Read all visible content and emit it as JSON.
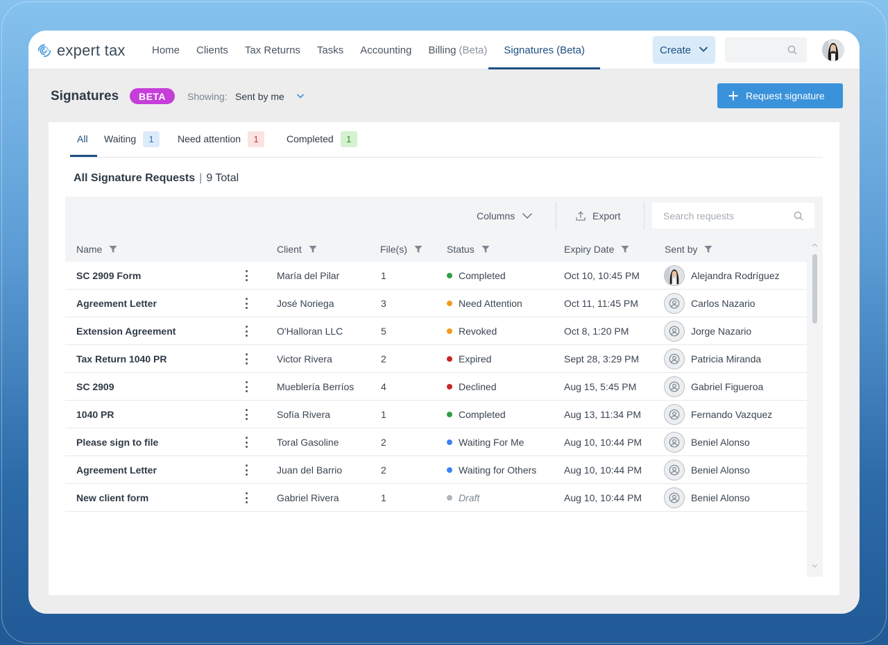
{
  "brand": {
    "name": "expert tax"
  },
  "nav": {
    "items": [
      {
        "label": "Home",
        "suffix": ""
      },
      {
        "label": "Clients",
        "suffix": ""
      },
      {
        "label": "Tax Returns",
        "suffix": ""
      },
      {
        "label": "Tasks",
        "suffix": ""
      },
      {
        "label": "Accounting",
        "suffix": ""
      },
      {
        "label": "Billing",
        "suffix": "(Beta)"
      },
      {
        "label": "Signatures",
        "suffix": "(Beta)"
      }
    ],
    "active_index": 6,
    "create_label": "Create"
  },
  "header": {
    "title": "Signatures",
    "beta_badge": "BETA",
    "showing_label": "Showing:",
    "showing_value": "Sent by me",
    "request_button": "Request signature"
  },
  "tabs": [
    {
      "label": "All",
      "count": null
    },
    {
      "label": "Waiting",
      "count": "1"
    },
    {
      "label": "Need attention",
      "count": "1"
    },
    {
      "label": "Completed",
      "count": "1"
    }
  ],
  "summary": {
    "title": "All Signature Requests",
    "separator": "|",
    "total": "9 Total"
  },
  "toolbar": {
    "columns_label": "Columns",
    "export_label": "Export",
    "search_placeholder": "Search requests"
  },
  "table": {
    "headers": {
      "name": "Name",
      "client": "Client",
      "files": "File(s)",
      "status": "Status",
      "expiry": "Expiry Date",
      "sender": "Sent by"
    },
    "rows": [
      {
        "name": "SC 2909 Form",
        "client": "María del Pilar",
        "files": "1",
        "status": "Completed",
        "status_color": "#2ea043",
        "expiry": "Oct 10, 10:45 PM",
        "sender": "Alejandra Rodríguez",
        "avatar": "photo"
      },
      {
        "name": "Agreement Letter",
        "client": "José Noriega",
        "files": "3",
        "status": "Need Attention",
        "status_color": "#f39a1e",
        "expiry": "Oct 11, 11:45 PM",
        "sender": "Carlos Nazario",
        "avatar": "default"
      },
      {
        "name": "Extension Agreement",
        "client": "O'Halloran LLC",
        "files": "5",
        "status": "Revoked",
        "status_color": "#f39a1e",
        "expiry": "Oct 8, 1:20 PM",
        "sender": "Jorge Nazario",
        "avatar": "default"
      },
      {
        "name": "Tax Return 1040 PR",
        "client": "Victor Rivera",
        "files": "2",
        "status": "Expired",
        "status_color": "#c62828",
        "expiry": "Sept 28, 3:29 PM",
        "sender": "Patricia Miranda",
        "avatar": "default"
      },
      {
        "name": "SC 2909",
        "client": "Mueblería Berríos",
        "files": "4",
        "status": "Declined",
        "status_color": "#c62828",
        "expiry": "Aug 15, 5:45 PM",
        "sender": "Gabriel Figueroa",
        "avatar": "default"
      },
      {
        "name": "1040 PR",
        "client": "Sofía Rivera",
        "files": "1",
        "status": "Completed",
        "status_color": "#2ea043",
        "expiry": "Aug 13, 11:34 PM",
        "sender": "Fernando Vazquez",
        "avatar": "default"
      },
      {
        "name": "Please sign to file",
        "client": "Toral Gasoline",
        "files": "2",
        "status": "Waiting For Me",
        "status_color": "#3b82f6",
        "expiry": "Aug 10, 10:44 PM",
        "sender": "Beniel Alonso",
        "avatar": "default"
      },
      {
        "name": "Agreement Letter",
        "client": "Juan del Barrio",
        "files": "2",
        "status": "Waiting for Others",
        "status_color": "#3b82f6",
        "expiry": "Aug 10, 10:44 PM",
        "sender": "Beniel Alonso",
        "avatar": "default"
      },
      {
        "name": "New client form",
        "client": "Gabriel Rivera",
        "files": "1",
        "status": "Draft",
        "status_color": "#b0b5bb",
        "expiry": "Aug 10, 10:44 PM",
        "sender": "Beniel Alonso",
        "avatar": "default"
      }
    ]
  },
  "icons": {
    "logo": "swirl-logo-icon",
    "create_chevron": "chevron-down-icon",
    "search": "search-icon",
    "filter": "filter-icon",
    "kebab": "more-vertical-icon",
    "export": "upload-icon",
    "avatar_default": "user-circle-icon"
  },
  "colors": {
    "accent": "#1d4e80",
    "primary_button": "#3a92da",
    "beta_badge": "#c63ed9"
  }
}
